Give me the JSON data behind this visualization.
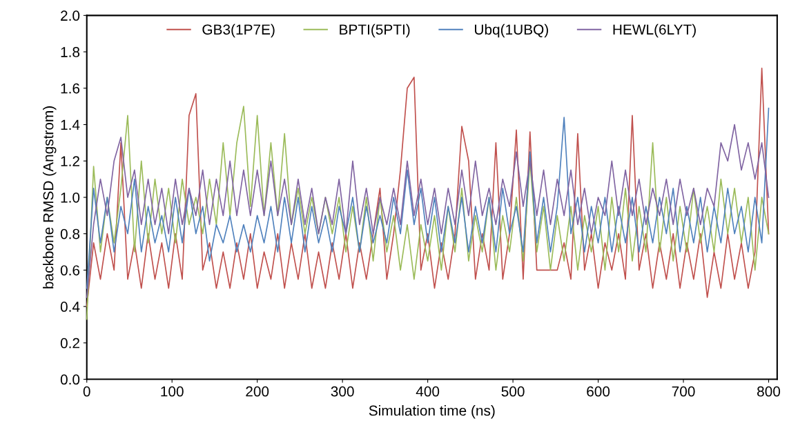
{
  "chart_data": {
    "type": "line",
    "xlabel": "Simulation time (ns)",
    "ylabel": "backbone RMSD (Angstrom)",
    "x": [
      0,
      8,
      16,
      24,
      32,
      40,
      48,
      56,
      64,
      72,
      80,
      88,
      96,
      104,
      112,
      120,
      128,
      136,
      144,
      152,
      160,
      168,
      176,
      184,
      192,
      200,
      208,
      216,
      224,
      232,
      240,
      248,
      256,
      264,
      272,
      280,
      288,
      296,
      304,
      312,
      320,
      328,
      336,
      344,
      352,
      360,
      368,
      376,
      384,
      392,
      400,
      408,
      416,
      424,
      432,
      440,
      448,
      456,
      464,
      472,
      480,
      488,
      496,
      504,
      512,
      520,
      528,
      536,
      544,
      552,
      560,
      568,
      576,
      584,
      592,
      600,
      608,
      616,
      624,
      632,
      640,
      648,
      656,
      664,
      672,
      680,
      688,
      696,
      704,
      712,
      720,
      728,
      736,
      744,
      752,
      760,
      768,
      776,
      784,
      792,
      800
    ],
    "xlim": [
      0,
      810
    ],
    "xticks": [
      0,
      100,
      200,
      300,
      400,
      500,
      600,
      700,
      800
    ],
    "ylim": [
      0,
      2
    ],
    "yticks": [
      {
        "value": 0,
        "label": "0.0"
      },
      {
        "value": 0.2,
        "label": "0.2"
      },
      {
        "value": 0.4,
        "label": "0.4"
      },
      {
        "value": 0.6,
        "label": "0.6"
      },
      {
        "value": 0.8,
        "label": "0.8"
      },
      {
        "value": 1.0,
        "label": "1.0"
      },
      {
        "value": 1.2,
        "label": "1.2"
      },
      {
        "value": 1.4,
        "label": "1.4"
      },
      {
        "value": 1.6,
        "label": "1.6"
      },
      {
        "value": 1.8,
        "label": "1.8"
      },
      {
        "value": 2.0,
        "label": "2.0"
      }
    ],
    "legend": "top",
    "marker": "none",
    "line_style": "solid",
    "grid": false,
    "series": [
      {
        "name": "GB3(1P7E)",
        "color": "#c0504d",
        "values": [
          0.4,
          0.75,
          0.55,
          0.8,
          0.6,
          1.3,
          0.55,
          0.75,
          0.5,
          0.8,
          0.55,
          0.75,
          0.5,
          0.8,
          0.55,
          1.45,
          1.57,
          0.6,
          0.75,
          0.5,
          0.7,
          0.5,
          0.75,
          0.55,
          0.8,
          0.5,
          0.7,
          0.55,
          0.8,
          0.5,
          0.75,
          0.55,
          0.8,
          0.5,
          0.7,
          0.5,
          0.75,
          0.55,
          0.8,
          0.5,
          0.75,
          0.55,
          0.8,
          1.05,
          0.55,
          0.8,
          1.15,
          1.6,
          1.66,
          0.6,
          0.8,
          0.5,
          0.75,
          0.55,
          0.8,
          1.39,
          1.2,
          0.55,
          0.8,
          0.6,
          1.3,
          0.55,
          0.8,
          1.37,
          0.55,
          1.36,
          0.6,
          0.6,
          0.6,
          0.6,
          0.75,
          0.55,
          1.35,
          0.6,
          0.8,
          0.5,
          0.75,
          0.6,
          0.8,
          0.55,
          1.45,
          0.6,
          0.8,
          0.5,
          0.75,
          0.55,
          0.8,
          0.5,
          0.75,
          0.55,
          0.8,
          0.45,
          0.7,
          0.5,
          0.8,
          0.55,
          0.75,
          0.5,
          0.7,
          1.71,
          0.8
        ]
      },
      {
        "name": "BPTI(5PTI)",
        "color": "#9bbb59",
        "values": [
          0.33,
          1.17,
          0.7,
          1.0,
          0.75,
          1.05,
          1.45,
          0.7,
          1.2,
          0.75,
          1.1,
          0.8,
          1.05,
          0.75,
          1.1,
          0.85,
          1.0,
          0.8,
          1.1,
          0.85,
          1.3,
          0.9,
          1.3,
          1.5,
          0.95,
          1.45,
          0.9,
          1.3,
          0.9,
          1.35,
          0.85,
          1.05,
          0.8,
          1.0,
          0.8,
          1.0,
          0.8,
          1.0,
          0.7,
          0.95,
          0.7,
          1.0,
          0.65,
          1.0,
          0.7,
          0.9,
          0.6,
          0.85,
          0.55,
          0.85,
          0.65,
          0.9,
          0.6,
          0.95,
          0.7,
          1.05,
          0.65,
          0.9,
          0.7,
          1.0,
          0.6,
          0.9,
          0.7,
          1.0,
          0.65,
          1.2,
          0.7,
          0.95,
          0.6,
          0.9,
          0.65,
          0.95,
          0.6,
          0.9,
          0.7,
          0.95,
          0.6,
          1.0,
          0.7,
          1.05,
          0.65,
          0.95,
          0.7,
          1.3,
          0.7,
          1.0,
          0.65,
          0.95,
          0.7,
          1.05,
          0.75,
          0.95,
          0.7,
          1.1,
          0.8,
          1.05,
          0.75,
          1.0,
          0.6,
          1.0,
          0.8
        ]
      },
      {
        "name": "Ubq(1UBQ)",
        "color": "#4f81bd",
        "values": [
          0.5,
          1.05,
          0.75,
          1.0,
          0.7,
          0.95,
          0.8,
          1.1,
          0.7,
          0.95,
          0.75,
          0.9,
          0.7,
          1.0,
          0.75,
          1.05,
          0.8,
          0.95,
          0.65,
          0.85,
          0.75,
          0.9,
          0.7,
          0.85,
          0.7,
          0.9,
          0.75,
          0.95,
          0.7,
          1.0,
          0.75,
          1.0,
          0.7,
          0.95,
          0.75,
          0.9,
          0.7,
          0.95,
          0.8,
          1.0,
          0.7,
          0.95,
          0.75,
          0.9,
          0.75,
          1.0,
          0.8,
          1.15,
          0.85,
          1.05,
          0.75,
          1.0,
          0.7,
          0.95,
          0.75,
          1.0,
          0.7,
          0.95,
          0.75,
          1.0,
          0.7,
          1.05,
          0.8,
          0.95,
          0.7,
          1.25,
          0.75,
          1.0,
          0.7,
          0.95,
          1.44,
          0.8,
          1.0,
          0.7,
          0.95,
          0.75,
          1.0,
          0.7,
          0.95,
          0.75,
          1.0,
          0.7,
          0.95,
          0.75,
          1.0,
          0.8,
          1.05,
          0.7,
          0.95,
          0.75,
          1.0,
          0.7,
          0.95,
          0.75,
          1.05,
          0.8,
          0.95,
          0.7,
          1.0,
          0.75,
          1.49
        ]
      },
      {
        "name": "HEWL(6LYT)",
        "color": "#8064a2",
        "values": [
          0.45,
          0.85,
          1.1,
          0.9,
          1.2,
          1.33,
          1.0,
          1.15,
          0.85,
          1.1,
          0.85,
          1.05,
          0.8,
          1.1,
          0.85,
          1.05,
          0.9,
          1.15,
          0.85,
          1.1,
          0.9,
          1.2,
          0.9,
          1.15,
          0.9,
          1.15,
          0.9,
          1.2,
          0.9,
          1.1,
          0.85,
          1.1,
          0.85,
          1.05,
          0.8,
          1.0,
          0.85,
          1.1,
          0.8,
          1.2,
          0.85,
          1.05,
          0.8,
          1.0,
          0.85,
          1.05,
          0.85,
          1.2,
          0.9,
          1.1,
          0.85,
          1.05,
          0.8,
          1.05,
          0.85,
          1.15,
          0.9,
          1.2,
          0.9,
          1.05,
          0.85,
          1.1,
          0.95,
          1.25,
          0.95,
          1.2,
          0.9,
          1.15,
          0.85,
          1.1,
          0.9,
          1.15,
          0.85,
          1.05,
          0.8,
          1.0,
          0.9,
          1.2,
          0.9,
          1.15,
          0.9,
          1.1,
          0.85,
          1.05,
          0.9,
          1.1,
          0.85,
          1.1,
          0.9,
          1.05,
          0.85,
          1.05,
          0.95,
          1.3,
          1.2,
          1.4,
          1.15,
          1.3,
          1.1,
          1.3,
          1.0
        ]
      }
    ]
  }
}
